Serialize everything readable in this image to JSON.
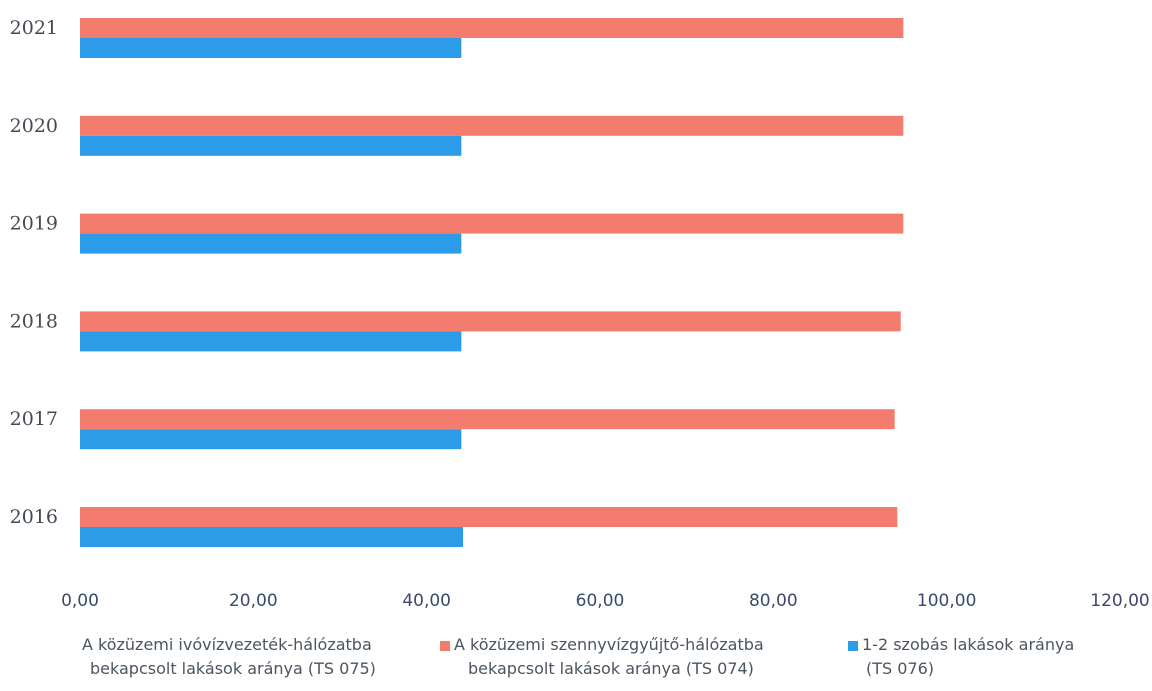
{
  "chart_data": {
    "type": "bar",
    "orientation": "horizontal",
    "categories": [
      "2021",
      "2020",
      "2019",
      "2018",
      "2017",
      "2016"
    ],
    "series": [
      {
        "name": "A közüzemi szennyvízgyűjtő-hálózatba bekapcsolt lakások aránya (TS 074)",
        "color": "#f47c6e",
        "values": [
          95.0,
          95.0,
          95.0,
          94.7,
          94.0,
          94.3
        ]
      },
      {
        "name": "1-2 szobás lakások aránya (TS 076)",
        "color": "#2c9be8",
        "values": [
          44.0,
          44.0,
          44.0,
          44.0,
          44.0,
          44.2
        ]
      },
      {
        "name": "A közüzemi ivóvízvezeték-hálózatba bekapcsolt lakások aránya (TS 075)",
        "color": "#f5f5f5",
        "values": [
          null,
          null,
          null,
          null,
          null,
          null
        ]
      }
    ],
    "x_ticks": [
      "0,00",
      "20,00",
      "40,00",
      "60,00",
      "80,00",
      "100,00",
      "120,00"
    ],
    "xlim": [
      0,
      120
    ],
    "legend_position": "bottom",
    "legend": [
      {
        "line1": "A közüzemi ivóvízvezeték-hálózatba",
        "line2": "bekapcsolt lakások aránya (TS 075)",
        "color": "#f5f5f5"
      },
      {
        "line1": "A közüzemi szennyvízgyűjtő-hálózatba",
        "line2": "bekapcsolt lakások aránya (TS 074)",
        "color": "#f47c6e"
      },
      {
        "line1": "1-2 szobás lakások aránya",
        "line2": "(TS 076)",
        "color": "#2c9be8"
      }
    ]
  }
}
